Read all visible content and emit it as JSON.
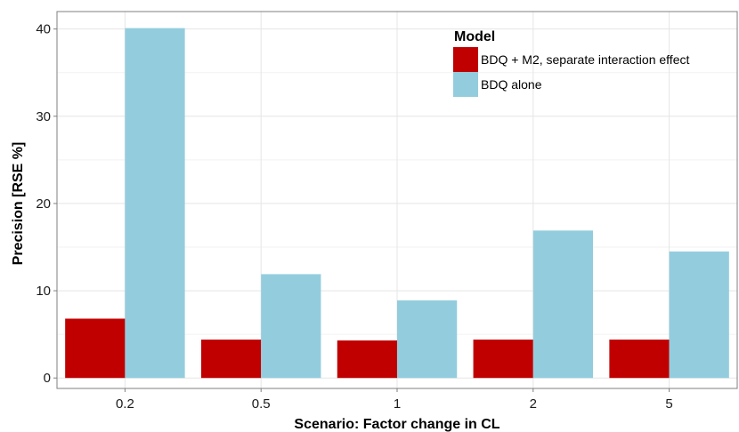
{
  "chart_data": {
    "type": "bar",
    "xlabel": "Scenario: Factor change in CL",
    "ylabel": "Precision [RSE %]",
    "categories": [
      "0.2",
      "0.5",
      "1",
      "2",
      "5"
    ],
    "ylim": [
      -1.2,
      42.0
    ],
    "yticks": [
      0,
      10,
      20,
      30,
      40
    ],
    "grid": true,
    "legend": {
      "title": "Model",
      "position": "top-right"
    },
    "series": [
      {
        "name": "BDQ + M2, separate interaction effect",
        "color": "#C00000",
        "values": [
          6.8,
          4.4,
          4.3,
          4.4,
          4.4
        ]
      },
      {
        "name": "BDQ alone",
        "color": "#93CDDD",
        "values": [
          40.1,
          11.9,
          8.9,
          16.9,
          14.5
        ]
      }
    ]
  }
}
